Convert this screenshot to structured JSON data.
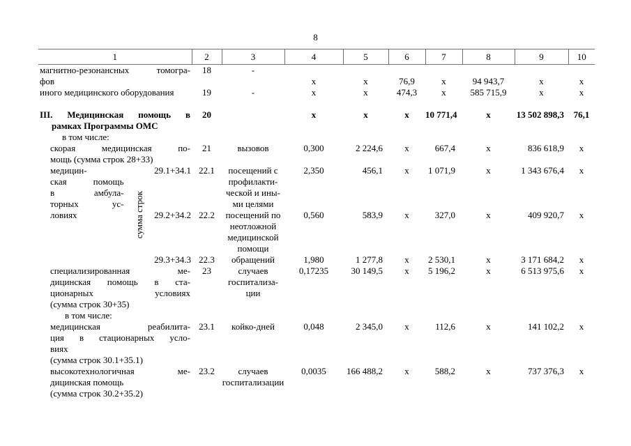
{
  "colors": {
    "text": "#000000",
    "background": "#ffffff",
    "table_border": "#6e6e6e"
  },
  "page_number": "8",
  "table": {
    "headers": [
      "1",
      "2",
      "3",
      "4",
      "5",
      "6",
      "7",
      "8",
      "9",
      "10"
    ],
    "rows": {
      "r18": {
        "label": "магнитно-резонансных томогра-\nфов",
        "num": "18",
        "unit": "-",
        "c4": "х",
        "c5": "х",
        "c6": "76,9",
        "c7": "х",
        "c8": "94 943,7",
        "c9": "х",
        "c10": "х"
      },
      "r19": {
        "label": "иного медицинского оборудования",
        "num": "19",
        "unit": "-",
        "c4": "х",
        "c5": "х",
        "c6": "474,3",
        "c7": "х",
        "c8": "585 715,9",
        "c9": "х",
        "c10": "х"
      },
      "r20": {
        "label": "III. Медицинская помощь в\nрамках Программы ОМС",
        "num": "20",
        "unit": "",
        "c4": "х",
        "c5": "х",
        "c6": "х",
        "c7": "10 771,4",
        "c8": "х",
        "c9": "13 502 898,3",
        "c10": "76,1"
      },
      "in_total_1": "в том числе:",
      "r21": {
        "label": "скорая медицинская по-\nмощь (сумма строк 28+33)",
        "num": "21",
        "unit": "вызовов",
        "c4": "0,300",
        "c5": "2 224,6",
        "c6": "х",
        "c7": "667,4",
        "c8": "х",
        "c9": "836 618,9",
        "c10": "х"
      },
      "amb": {
        "label": "медицин-\nская помощь\nв амбула-\nторных ус-\nловиях",
        "rotated": "сумма строк",
        "sub": [
          {
            "formula": "29.1+34.1",
            "num": "22.1",
            "unit": "посещений с\nпрофилакти-\nческой и ины-\nми целями",
            "c4": "2,350",
            "c5": "456,1",
            "c6": "х",
            "c7": "1 071,9",
            "c8": "х",
            "c9": "1 343 676,4",
            "c10": "х"
          },
          {
            "formula": "29.2+34.2",
            "num": "22.2",
            "unit": "посещений по\nнеотложной\nмедицинской\nпомощи",
            "c4": "0,560",
            "c5": "583,9",
            "c6": "х",
            "c7": "327,0",
            "c8": "х",
            "c9": "409 920,7",
            "c10": "х"
          },
          {
            "formula": "29.3+34.3",
            "num": "22.3",
            "unit": "обращений",
            "c4": "1,980",
            "c5": "1 277,8",
            "c6": "х",
            "c7": "2 530,1",
            "c8": "х",
            "c9": "3 171 684,2",
            "c10": "х"
          }
        ]
      },
      "r23": {
        "label": "специализированная ме-\nдицинская помощь в ста-\nционарных условиях\n(сумма строк 30+35)",
        "num": "23",
        "unit": "случаев\nгоспитализа-\nции",
        "c4": "0,17235",
        "c5": "30 149,5",
        "c6": "х",
        "c7": "5 196,2",
        "c8": "х",
        "c9": "6 513 975,6",
        "c10": "х"
      },
      "in_total_2": "в том числе:",
      "r23_1": {
        "label": "медицинская реабилита-\nция в стационарных усло-\nвиях\n(сумма строк 30.1+35.1)",
        "num": "23.1",
        "unit": "койко-дней",
        "c4": "0,048",
        "c5": "2 345,0",
        "c6": "х",
        "c7": "112,6",
        "c8": "х",
        "c9": "141 102,2",
        "c10": "х"
      },
      "r23_2": {
        "label": "высокотехнологичная ме-\nдицинская помощь\n(сумма строк 30.2+35.2)",
        "num": "23.2",
        "unit": "случаев\nгоспитализации",
        "c4": "0,0035",
        "c5": "166 488,2",
        "c6": "х",
        "c7": "588,2",
        "c8": "х",
        "c9": "737 376,3",
        "c10": "х"
      }
    }
  }
}
